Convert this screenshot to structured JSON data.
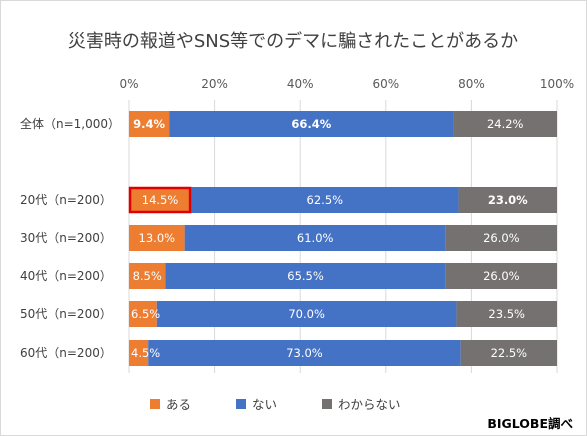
{
  "chart_data": {
    "type": "bar",
    "orientation": "horizontal",
    "stacked": "percent",
    "title": "災害時の報道やSNS等でのデマに騙されたことがあるか",
    "categories": [
      "全体（n=1,000）",
      "20代（n=200）",
      "30代（n=200）",
      "40代（n=200）",
      "50代（n=200）",
      "60代（n=200）"
    ],
    "series": [
      {
        "name": "ある",
        "color": "#ed7d31",
        "values": [
          9.4,
          14.5,
          13.0,
          8.5,
          6.5,
          4.5
        ],
        "labels": [
          "9.4%",
          "14.5%",
          "13.0%",
          "8.5%",
          "6.5%",
          "4.5%"
        ]
      },
      {
        "name": "ない",
        "color": "#4472c4",
        "values": [
          66.4,
          62.5,
          61.0,
          65.5,
          70.0,
          73.0
        ],
        "labels": [
          "66.4%",
          "62.5%",
          "61.0%",
          "65.5%",
          "70.0%",
          "73.0%"
        ]
      },
      {
        "name": "わからない",
        "color": "#767171",
        "values": [
          24.2,
          23.0,
          26.0,
          26.0,
          23.5,
          22.5
        ],
        "labels": [
          "24.2%",
          "23.0%",
          "26.0%",
          "26.0%",
          "23.5%",
          "22.5%"
        ]
      }
    ],
    "xlim": [
      0,
      100
    ],
    "x_ticks": [
      "0%",
      "20%",
      "40%",
      "60%",
      "80%",
      "100%"
    ],
    "legend_position": "bottom",
    "highlight": {
      "category_index": 1,
      "series_index": 0,
      "color": "#e00000"
    },
    "bold_labels": [
      {
        "category_index": 0,
        "series_index": 0
      },
      {
        "category_index": 0,
        "series_index": 1
      },
      {
        "category_index": 1,
        "series_index": 2
      }
    ],
    "grid": true
  },
  "credit": "BIGLOBE調べ"
}
